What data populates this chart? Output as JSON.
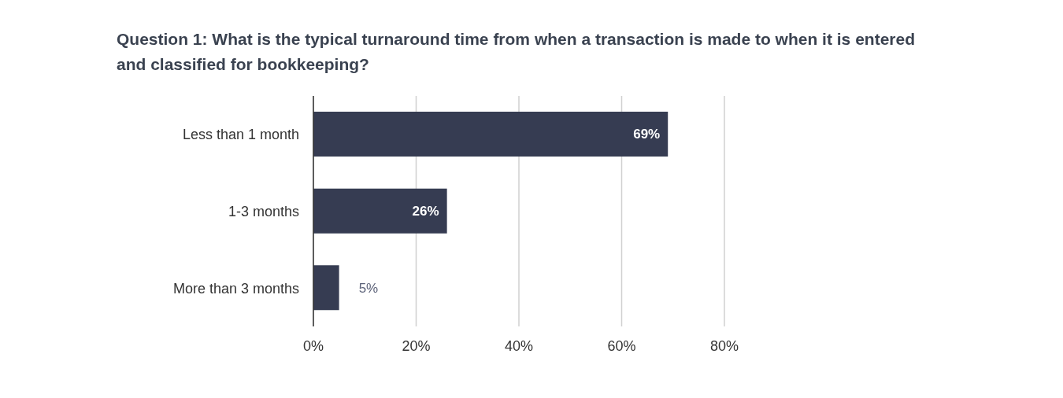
{
  "chart_data": {
    "type": "bar",
    "orientation": "horizontal",
    "title": "Question 1: What is the typical turnaround time from when a transaction is made to when it is entered and classified for bookkeeping?",
    "categories": [
      "Less than 1 month",
      "1-3 months",
      "More than 3 months"
    ],
    "values": [
      69,
      26,
      5
    ],
    "color": "#363c52",
    "value_labels": [
      "69%",
      "26%",
      "5%"
    ],
    "xlim": [
      0,
      80
    ],
    "xticks": [
      {
        "value": 0,
        "label": "0%"
      },
      {
        "value": 20,
        "label": "20%"
      },
      {
        "value": 40,
        "label": "40%"
      },
      {
        "value": 60,
        "label": "60%"
      },
      {
        "value": 80,
        "label": "80%"
      }
    ],
    "grid": "x",
    "legend": false
  }
}
